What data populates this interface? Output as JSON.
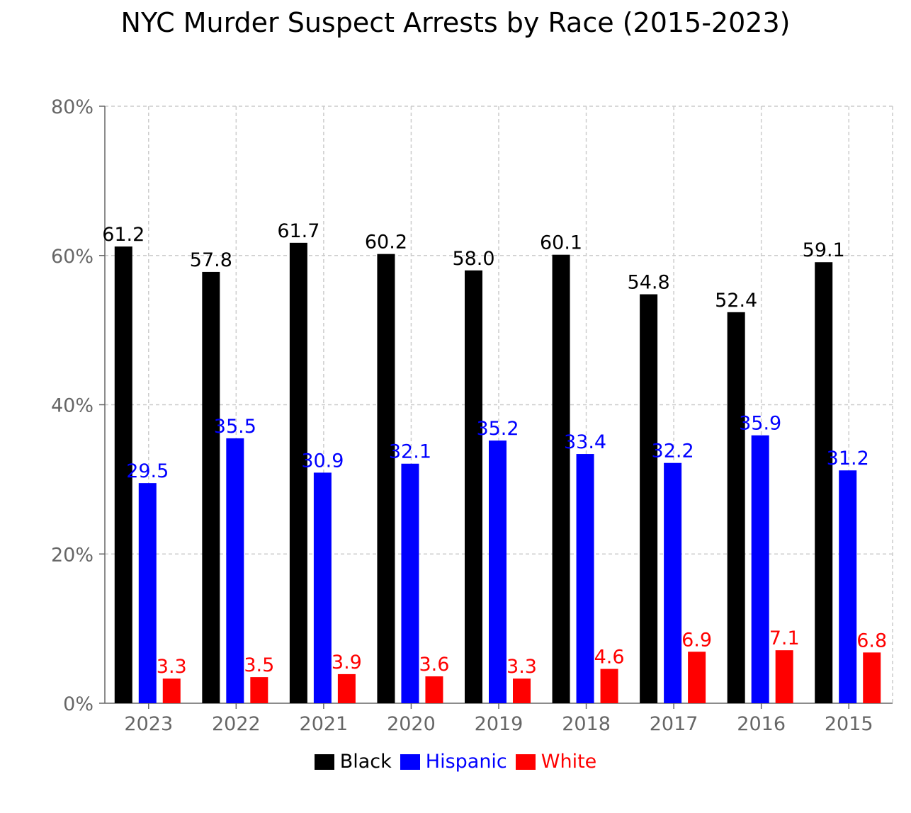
{
  "chart_data": {
    "type": "bar",
    "title": "NYC Murder Suspect Arrests by Race (2015-2023)",
    "xlabel": "",
    "ylabel": "",
    "categories": [
      "2023",
      "2022",
      "2021",
      "2020",
      "2019",
      "2018",
      "2017",
      "2016",
      "2015"
    ],
    "series": [
      {
        "name": "Black",
        "color": "#000000",
        "values": [
          61.2,
          57.8,
          61.7,
          60.2,
          58.0,
          60.1,
          54.8,
          52.4,
          59.1
        ]
      },
      {
        "name": "Hispanic",
        "color": "#0000ff",
        "values": [
          29.5,
          35.5,
          30.9,
          32.1,
          35.2,
          33.4,
          32.2,
          35.9,
          31.2
        ]
      },
      {
        "name": "White",
        "color": "#ff0000",
        "values": [
          3.3,
          3.5,
          3.9,
          3.6,
          3.3,
          4.6,
          6.9,
          7.1,
          6.8
        ]
      }
    ],
    "ylim": [
      0,
      80
    ],
    "yticks": [
      "0%",
      "20%",
      "40%",
      "60%",
      "80%"
    ],
    "ytick_values": [
      0,
      20,
      40,
      60,
      80
    ],
    "grid": true,
    "legend": "bottom"
  }
}
